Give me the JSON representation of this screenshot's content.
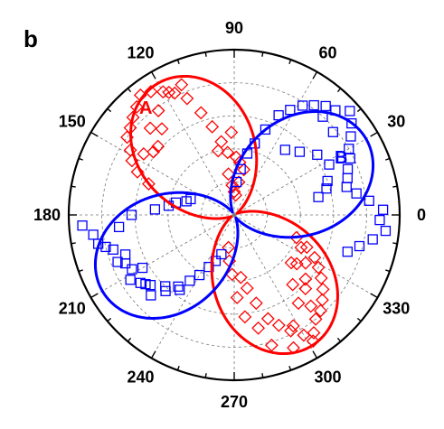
{
  "chart_data": {
    "type": "polar-scatter-line",
    "panel_label": "b",
    "angular_ticks": [
      "0",
      "30",
      "60",
      "90",
      "120",
      "150",
      "180",
      "210",
      "240",
      "270",
      "300",
      "330"
    ],
    "angular_tick_degrees": [
      0,
      30,
      60,
      90,
      120,
      150,
      180,
      210,
      240,
      270,
      300,
      330
    ],
    "radial_range": [
      0,
      1
    ],
    "radial_grid": [
      0.2,
      0.4,
      0.6,
      0.8,
      1.0
    ],
    "grid": true,
    "series": [
      {
        "name": "A",
        "color": "#ff0000",
        "marker": "diamond",
        "fit": {
          "model": "A0*cos^2(theta - phi)",
          "phase_deg": 120,
          "amplitude": 0.9,
          "offset": 0.02
        },
        "points_theta_deg": [
          96,
          100,
          104,
          108,
          112,
          116,
          120,
          124,
          128,
          132,
          136,
          140,
          144,
          148,
          152,
          156,
          160,
          112,
          118,
          126,
          134,
          142,
          104,
          98,
          94,
          90,
          86,
          82,
          78,
          84,
          88,
          92,
          130,
          138,
          146,
          276,
          280,
          284,
          288,
          292,
          296,
          300,
          304,
          308,
          312,
          316,
          320,
          324,
          328,
          332,
          336,
          340,
          286,
          294,
          302,
          310,
          318,
          326,
          334,
          282,
          298,
          306,
          314,
          322,
          260,
          264,
          268,
          272,
          276,
          310,
          320
        ],
        "points_r": [
          0.38,
          0.45,
          0.55,
          0.65,
          0.76,
          0.82,
          0.86,
          0.9,
          0.92,
          0.88,
          0.85,
          0.82,
          0.8,
          0.74,
          0.7,
          0.64,
          0.55,
          0.85,
          0.84,
          0.78,
          0.73,
          0.62,
          0.4,
          0.25,
          0.18,
          0.14,
          0.12,
          0.2,
          0.28,
          0.32,
          0.35,
          0.5,
          0.68,
          0.62,
          0.66,
          0.38,
          0.45,
          0.55,
          0.66,
          0.72,
          0.78,
          0.84,
          0.86,
          0.8,
          0.78,
          0.74,
          0.7,
          0.65,
          0.6,
          0.55,
          0.48,
          0.4,
          0.82,
          0.88,
          0.9,
          0.72,
          0.58,
          0.52,
          0.45,
          0.7,
          0.76,
          0.66,
          0.62,
          0.48,
          0.2,
          0.28,
          0.36,
          0.5,
          0.62,
          0.55,
          0.45
        ]
      },
      {
        "name": "B",
        "color": "#0000ff",
        "marker": "square",
        "fit": {
          "model": "B0*cos^2(theta - phi)",
          "phase_deg": 30,
          "amplitude": 0.9,
          "offset": 0.02
        },
        "points_theta_deg": [
          2,
          6,
          10,
          14,
          18,
          22,
          26,
          30,
          34,
          38,
          42,
          46,
          50,
          54,
          58,
          62,
          66,
          70,
          74,
          78,
          82,
          86,
          20,
          28,
          36,
          44,
          52,
          12,
          16,
          40,
          48,
          184,
          188,
          192,
          196,
          200,
          204,
          208,
          212,
          216,
          220,
          224,
          228,
          232,
          236,
          240,
          244,
          248,
          252,
          186,
          194,
          202,
          210,
          218,
          226,
          234,
          180,
          176,
          172,
          168,
          164,
          160,
          350,
          354,
          358,
          346,
          342
        ],
        "points_r": [
          0.9,
          0.82,
          0.75,
          0.7,
          0.72,
          0.74,
          0.78,
          0.8,
          0.85,
          0.9,
          0.94,
          0.88,
          0.86,
          0.82,
          0.78,
          0.72,
          0.66,
          0.55,
          0.45,
          0.38,
          0.28,
          0.2,
          0.6,
          0.65,
          0.62,
          0.55,
          0.5,
          0.52,
          0.58,
          0.78,
          0.8,
          0.92,
          0.86,
          0.84,
          0.76,
          0.7,
          0.72,
          0.7,
          0.74,
          0.7,
          0.66,
          0.7,
          0.62,
          0.55,
          0.48,
          0.42,
          0.35,
          0.3,
          0.25,
          0.7,
          0.8,
          0.76,
          0.64,
          0.68,
          0.6,
          0.56,
          0.62,
          0.48,
          0.4,
          0.36,
          0.3,
          0.28,
          0.85,
          0.92,
          0.88,
          0.78,
          0.72
        ]
      }
    ]
  }
}
